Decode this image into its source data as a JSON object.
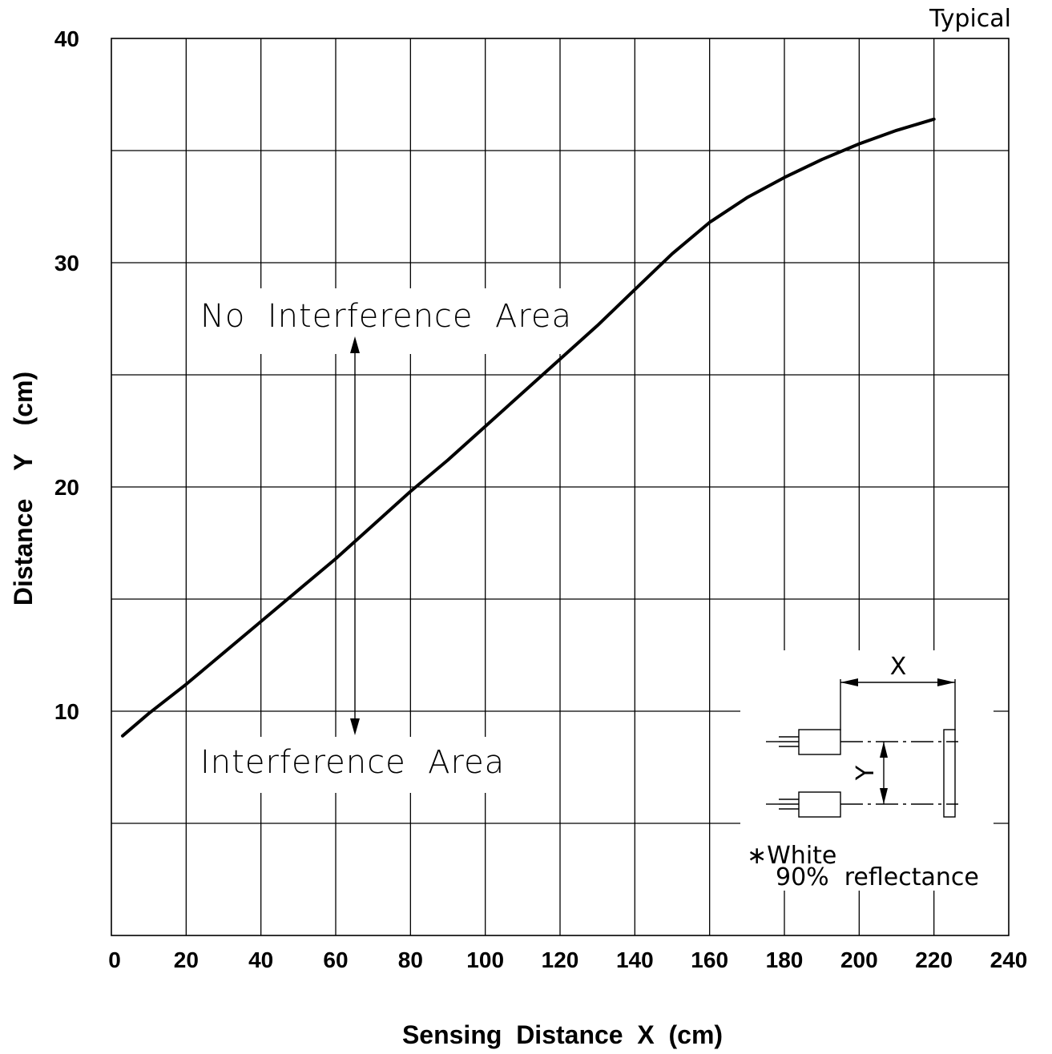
{
  "chart_data": {
    "type": "line",
    "title": "",
    "corner_note": "Typical",
    "xlabel": "Sensing  Distance  X  (cm)",
    "ylabel": "Distance    Y    (cm)",
    "xlim": [
      0,
      240
    ],
    "ylim": [
      0,
      40
    ],
    "x_ticks": [
      0,
      20,
      40,
      60,
      80,
      100,
      120,
      140,
      160,
      180,
      200,
      220,
      240
    ],
    "y_ticks": [
      10,
      20,
      30,
      40
    ],
    "x_tick_labels": [
      "0",
      "20",
      "40",
      "60",
      "80",
      "100",
      "120",
      "140",
      "160",
      "180",
      "200",
      "220",
      "240"
    ],
    "y_tick_labels": [
      "10",
      "20",
      "30",
      "40"
    ],
    "y_grid_step": 5,
    "grid": true,
    "series": [
      {
        "x": [
          3,
          10,
          20,
          30,
          40,
          50,
          60,
          70,
          80,
          90,
          100,
          110,
          120,
          130,
          140,
          150,
          160,
          170,
          180,
          190,
          200,
          210,
          220
        ],
        "y": [
          8.9,
          9.9,
          11.2,
          12.6,
          14.0,
          15.4,
          16.8,
          18.3,
          19.8,
          21.2,
          22.7,
          24.2,
          25.7,
          27.2,
          28.8,
          30.4,
          31.8,
          32.9,
          33.8,
          34.6,
          35.3,
          35.9,
          36.4
        ],
        "color": "#000000"
      }
    ],
    "annotations": {
      "upper_region": "No  Interference  Area",
      "lower_region": "Interference  Area",
      "inset_x_label": "X",
      "inset_y_label": "Y",
      "reflectance_line1": "∗White",
      "reflectance_line2": "90%  reflectance"
    }
  }
}
